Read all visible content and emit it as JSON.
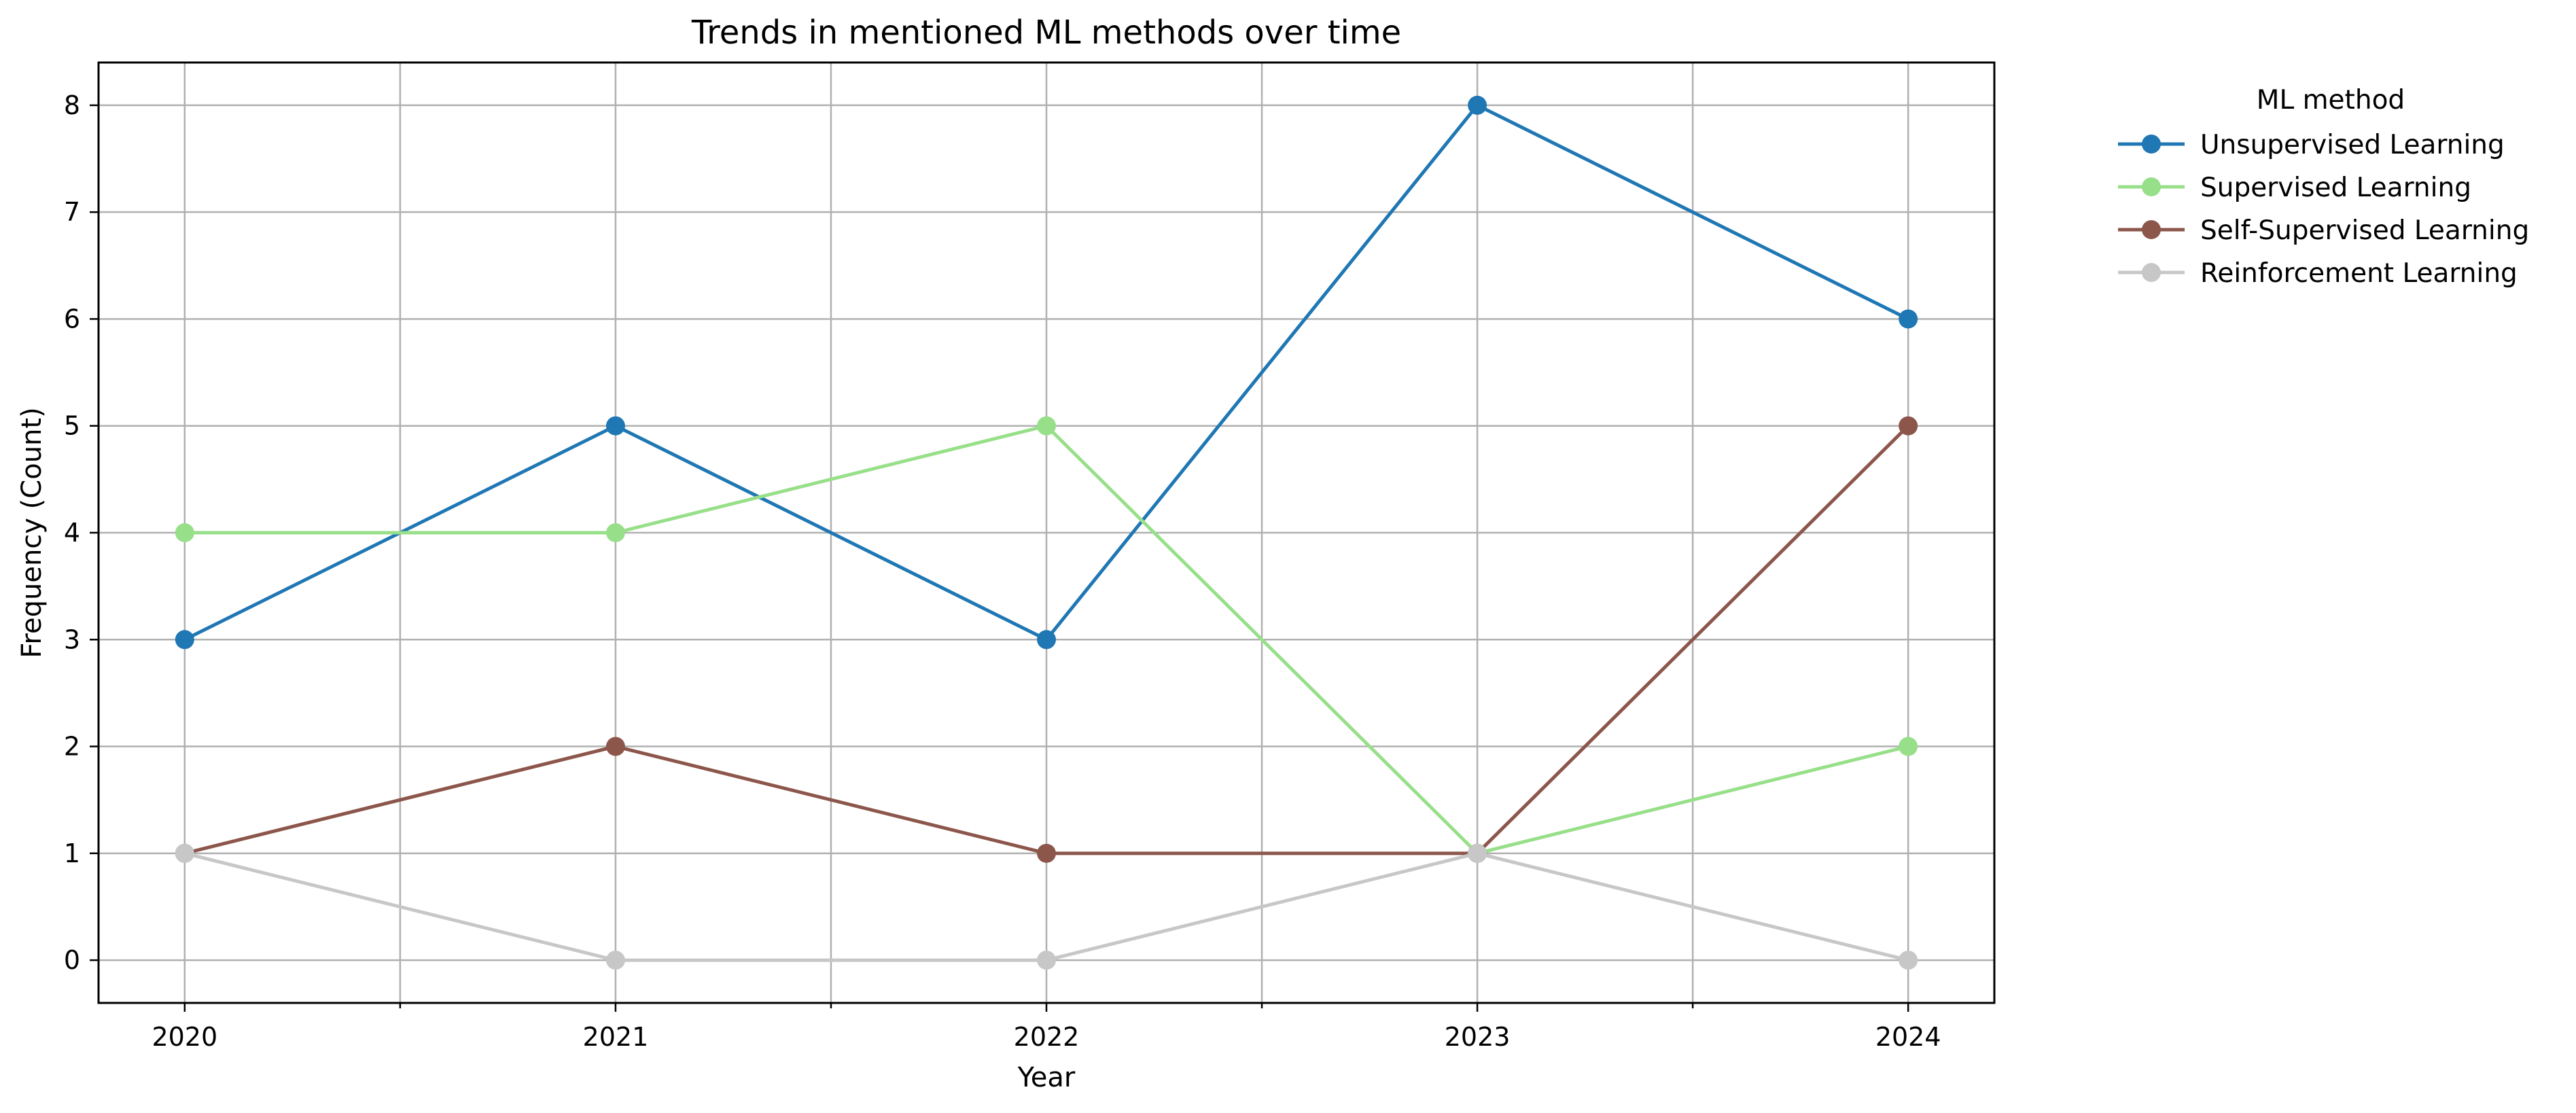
{
  "chart_data": {
    "type": "line",
    "title": "Trends in mentioned ML methods over time",
    "xlabel": "Year",
    "ylabel": "Frequency (Count)",
    "x": [
      "2020",
      "2021",
      "2022",
      "2023",
      "2024"
    ],
    "xlim": [
      2019.8,
      2024.2
    ],
    "ylim": [
      -0.4,
      8.4
    ],
    "yticks": [
      "0",
      "1",
      "2",
      "3",
      "4",
      "5",
      "6",
      "7",
      "8"
    ],
    "grid": true,
    "legend": {
      "title": "ML method",
      "placement": "outside-right"
    },
    "series": [
      {
        "name": "Unsupervised Learning",
        "color": "#1f77b4",
        "values": [
          3,
          5,
          3,
          8,
          6
        ]
      },
      {
        "name": "Supervised Learning",
        "color": "#98df8a",
        "values": [
          4,
          4,
          5,
          1,
          2
        ]
      },
      {
        "name": "Self-Supervised Learning",
        "color": "#8c564b",
        "values": [
          1,
          2,
          1,
          1,
          5
        ]
      },
      {
        "name": "Reinforcement Learning",
        "color": "#c7c7c7",
        "values": [
          1,
          0,
          0,
          1,
          0
        ]
      }
    ]
  }
}
